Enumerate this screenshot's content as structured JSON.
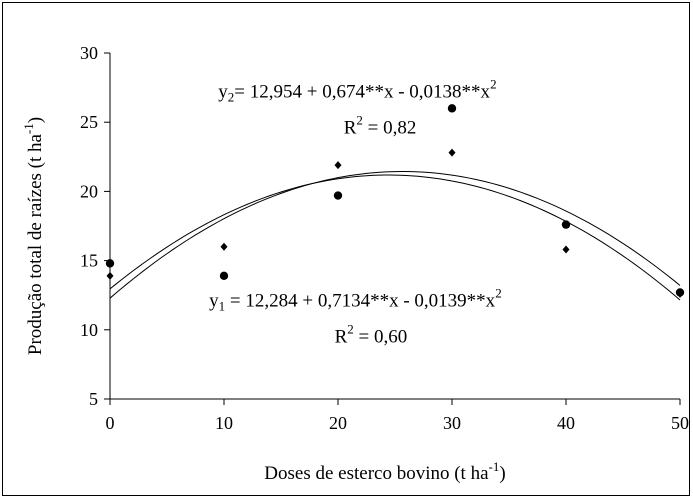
{
  "chart_data": {
    "type": "scatter",
    "xlabel": "Doses de esterco bovino (t ha",
    "xlabel_sup": "-1",
    "xlabel_end": ")",
    "ylabel": "Produção total de raízes (t ha",
    "ylabel_sup": "-1",
    "ylabel_end": ")",
    "xlim": [
      0,
      50
    ],
    "ylim": [
      5,
      30
    ],
    "x_ticks": [
      0,
      10,
      20,
      30,
      40,
      50
    ],
    "y_ticks": [
      5,
      10,
      15,
      20,
      25,
      30
    ],
    "grid": false,
    "series": [
      {
        "marker": "diamond",
        "points": [
          [
            0,
            13.9
          ],
          [
            10,
            16.0
          ],
          [
            20,
            21.9
          ],
          [
            30,
            22.8
          ],
          [
            40,
            15.8
          ],
          [
            50,
            12.6
          ]
        ],
        "fit": {
          "a": 12.284,
          "b": 0.7134,
          "c": -0.0139
        }
      },
      {
        "marker": "circle",
        "points": [
          [
            0,
            14.8
          ],
          [
            10,
            13.9
          ],
          [
            20,
            19.7
          ],
          [
            30,
            26.0
          ],
          [
            40,
            17.6
          ],
          [
            50,
            12.7
          ]
        ],
        "fit": {
          "a": 12.954,
          "b": 0.674,
          "c": -0.0138
        }
      }
    ],
    "annotations": [
      {
        "id": "eq2",
        "pre": "y",
        "sub": "2",
        "text": "= 12,954 + 0,674**x  - 0,0138**x",
        "sup": "2",
        "at": [
          9.5,
          26.8
        ]
      },
      {
        "id": "r2b",
        "pre": "R",
        "sup": "2",
        "text": " = 0,82",
        "at": [
          20.5,
          24.2
        ]
      },
      {
        "id": "eq1",
        "pre": "y",
        "sub": "1",
        "text": " = 12,284 + 0,7134**x - 0,0139**x",
        "sup": "2",
        "at": [
          8.7,
          11.7
        ]
      },
      {
        "id": "r2a",
        "pre": "R",
        "sup": "2",
        "text": " = 0,60",
        "at": [
          19.7,
          9.1
        ]
      }
    ]
  }
}
